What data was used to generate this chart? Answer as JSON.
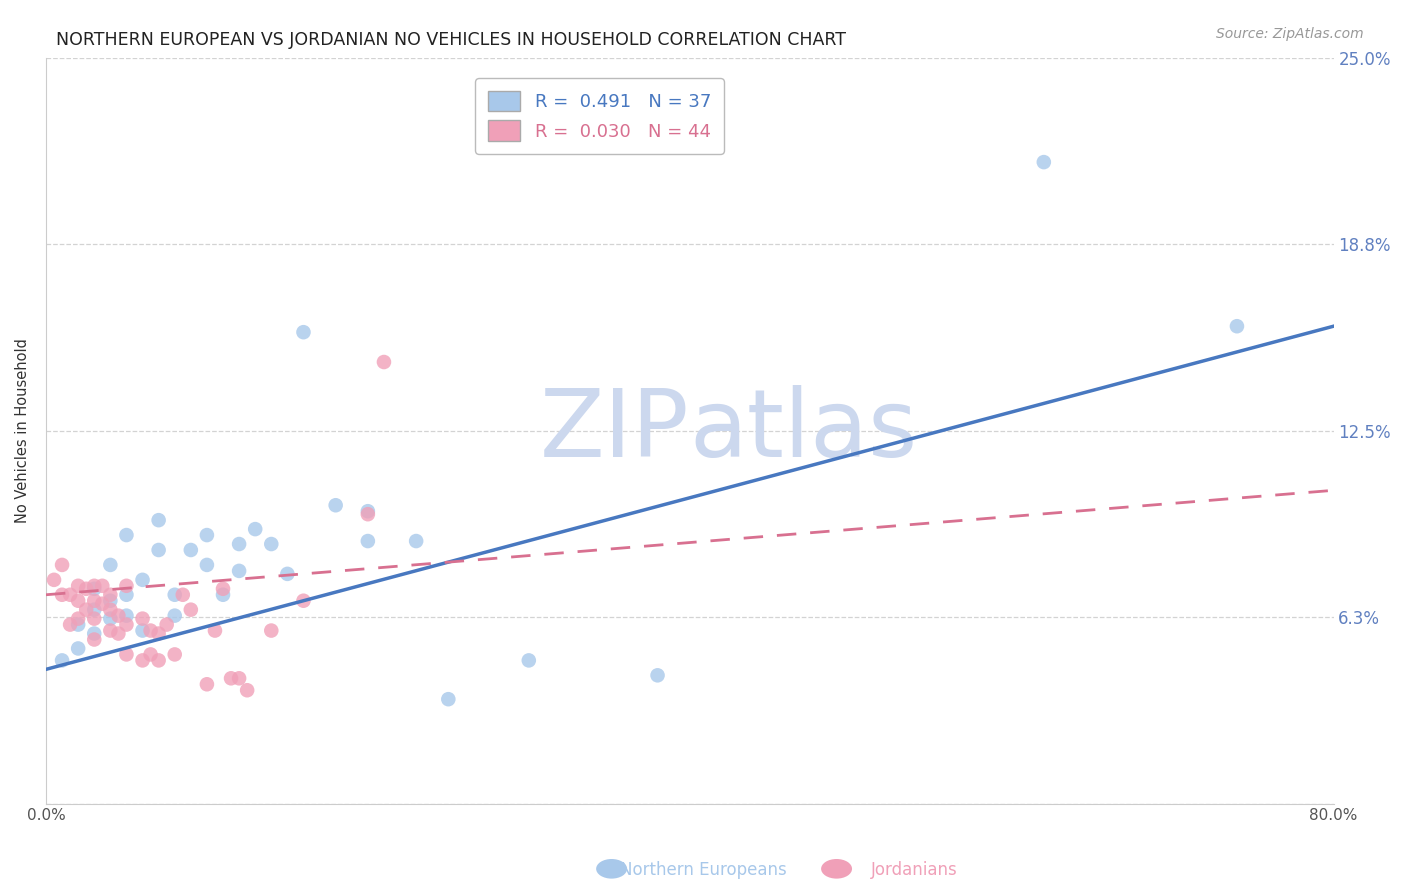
{
  "title": "NORTHERN EUROPEAN VS JORDANIAN NO VEHICLES IN HOUSEHOLD CORRELATION CHART",
  "source": "Source: ZipAtlas.com",
  "ylabel": "No Vehicles in Household",
  "background_color": "#ffffff",
  "plot_bg_color": "#ffffff",
  "grid_color": "#c8c8c8",
  "xlim": [
    0.0,
    0.8
  ],
  "ylim": [
    0.0,
    0.25
  ],
  "yticks": [
    0.0,
    0.0625,
    0.125,
    0.1875,
    0.25
  ],
  "ytick_labels": [
    "",
    "6.3%",
    "12.5%",
    "18.8%",
    "25.0%"
  ],
  "xticks": [
    0.0,
    0.1,
    0.2,
    0.3,
    0.4,
    0.5,
    0.6,
    0.7,
    0.8
  ],
  "xtick_labels": [
    "0.0%",
    "",
    "",
    "",
    "",
    "",
    "",
    "",
    "80.0%"
  ],
  "blue_R": 0.491,
  "blue_N": 37,
  "pink_R": 0.03,
  "pink_N": 44,
  "blue_color": "#a8c8ea",
  "pink_color": "#f0a0b8",
  "blue_line_color": "#4878c0",
  "pink_line_color": "#d87090",
  "right_label_color": "#6080c0",
  "blue_scatter_x": [
    0.01,
    0.02,
    0.02,
    0.03,
    0.03,
    0.03,
    0.04,
    0.04,
    0.04,
    0.05,
    0.05,
    0.05,
    0.06,
    0.06,
    0.07,
    0.07,
    0.08,
    0.08,
    0.09,
    0.1,
    0.1,
    0.11,
    0.12,
    0.12,
    0.13,
    0.14,
    0.15,
    0.16,
    0.18,
    0.2,
    0.2,
    0.23,
    0.25,
    0.3,
    0.38,
    0.62,
    0.74
  ],
  "blue_scatter_y": [
    0.048,
    0.06,
    0.052,
    0.072,
    0.065,
    0.057,
    0.08,
    0.062,
    0.068,
    0.09,
    0.07,
    0.063,
    0.075,
    0.058,
    0.095,
    0.085,
    0.063,
    0.07,
    0.085,
    0.09,
    0.08,
    0.07,
    0.087,
    0.078,
    0.092,
    0.087,
    0.077,
    0.158,
    0.1,
    0.098,
    0.088,
    0.088,
    0.035,
    0.048,
    0.043,
    0.215,
    0.16
  ],
  "pink_scatter_x": [
    0.005,
    0.01,
    0.01,
    0.015,
    0.015,
    0.02,
    0.02,
    0.02,
    0.025,
    0.025,
    0.03,
    0.03,
    0.03,
    0.03,
    0.035,
    0.035,
    0.04,
    0.04,
    0.04,
    0.045,
    0.045,
    0.05,
    0.05,
    0.05,
    0.06,
    0.06,
    0.065,
    0.065,
    0.07,
    0.07,
    0.075,
    0.08,
    0.085,
    0.09,
    0.1,
    0.105,
    0.11,
    0.115,
    0.12,
    0.125,
    0.14,
    0.16,
    0.2,
    0.21
  ],
  "pink_scatter_y": [
    0.075,
    0.07,
    0.08,
    0.06,
    0.07,
    0.062,
    0.068,
    0.073,
    0.065,
    0.072,
    0.068,
    0.062,
    0.055,
    0.073,
    0.067,
    0.073,
    0.058,
    0.065,
    0.07,
    0.057,
    0.063,
    0.05,
    0.06,
    0.073,
    0.048,
    0.062,
    0.05,
    0.058,
    0.048,
    0.057,
    0.06,
    0.05,
    0.07,
    0.065,
    0.04,
    0.058,
    0.072,
    0.042,
    0.042,
    0.038,
    0.058,
    0.068,
    0.097,
    0.148
  ],
  "title_fontsize": 12.5,
  "label_fontsize": 10.5,
  "tick_fontsize": 11,
  "legend_fontsize": 13,
  "source_fontsize": 10,
  "watermark_zip": "ZIP",
  "watermark_atlas": "atlas",
  "watermark_color": "#ccd8ee",
  "watermark_fontsize_zip": 68,
  "watermark_fontsize_atlas": 68,
  "bottom_legend_blue": "Northern Europeans",
  "bottom_legend_pink": "Jordanians"
}
